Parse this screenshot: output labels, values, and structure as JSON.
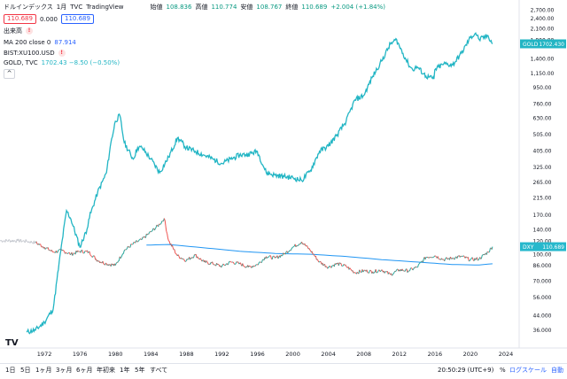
{
  "header": {
    "title": "ドルインデックス",
    "interval": "1月",
    "source": "TVC",
    "platform": "TradingView",
    "ohlc": {
      "open_label": "始値",
      "open": "108.836",
      "high_label": "高値",
      "high": "110.774",
      "low_label": "安値",
      "low": "108.767",
      "close_label": "終値",
      "close": "110.689",
      "change": "+2.004 (+1.84%)"
    },
    "bid": "110.689",
    "spread": "0.000",
    "ask": "110.689"
  },
  "indicators": {
    "volume_label": "出来高",
    "ma_label": "MA 200 close 0",
    "ma_value": "87.914",
    "compare1_label": "BIST:XU100.USD",
    "compare2_label": "GOLD, TVC",
    "compare2_value": "1702.43 −8.50 (−0.50%)",
    "warn_icon": "!",
    "collapse_icon": "^"
  },
  "colors": {
    "gold": "#22b5c4",
    "dxy_up": "#26a69a",
    "dxy_down": "#ef5350",
    "ma": "#2196f3",
    "gold_badge": "#22b5c4",
    "dxy_badge": "#26b8cc",
    "axis_text": "#131722"
  },
  "chart_data": {
    "type": "line",
    "title": "ドルインデックス, 1月, TVC",
    "xlabel": "",
    "ylabel": "",
    "y_scale": "log",
    "ylim": [
      30,
      3000
    ],
    "x_ticks": [
      "1972",
      "1976",
      "1980",
      "1984",
      "1988",
      "1992",
      "1996",
      "2000",
      "2004",
      "2008",
      "2012",
      "2016",
      "2020",
      "2024"
    ],
    "x_tick_years": [
      1972,
      1976,
      1980,
      1984,
      1988,
      1992,
      1996,
      2000,
      2004,
      2008,
      2012,
      2016,
      2020,
      2024
    ],
    "y_ticks": [
      "2,700.00",
      "2,400.00",
      "2,100.00",
      "1,800.00",
      "1,400.00",
      "1,150.00",
      "950.00",
      "760.00",
      "630.00",
      "505.00",
      "405.00",
      "325.00",
      "265.00",
      "215.00",
      "170.00",
      "140.00",
      "120.00",
      "100.00",
      "86.000",
      "70.000",
      "56.000",
      "44.000",
      "36.000"
    ],
    "y_tick_values": [
      2700,
      2400,
      2100,
      1800,
      1400,
      1150,
      950,
      760,
      630,
      505,
      405,
      325,
      265,
      215,
      170,
      140,
      120,
      100,
      86,
      70,
      56,
      44,
      36
    ],
    "series": [
      {
        "name": "GOLD",
        "style": "line",
        "x": [
          1970,
          1971,
          1972,
          1973,
          1974,
          1974.5,
          1975,
          1976,
          1976.8,
          1977,
          1978,
          1979,
          1979.5,
          1980,
          1980.5,
          1981,
          1982,
          1982.5,
          1983,
          1984,
          1985,
          1986,
          1987,
          1988,
          1989,
          1990,
          1991,
          1992,
          1993,
          1994,
          1995,
          1996,
          1997,
          1998,
          1999,
          2000,
          2001,
          2002,
          2003,
          2004,
          2005,
          2006,
          2007,
          2008,
          2009,
          2010,
          2011,
          2011.7,
          2012,
          2013,
          2013.5,
          2014,
          2015,
          2015.9,
          2016,
          2017,
          2018,
          2019,
          2020,
          2020.6,
          2021,
          2022,
          2022.5
        ],
        "values": [
          35,
          36,
          40,
          48,
          120,
          180,
          160,
          110,
          140,
          160,
          230,
          300,
          450,
          600,
          650,
          450,
          360,
          420,
          420,
          360,
          300,
          370,
          480,
          420,
          400,
          380,
          360,
          340,
          360,
          380,
          385,
          400,
          300,
          290,
          285,
          280,
          270,
          310,
          400,
          430,
          500,
          600,
          800,
          850,
          1100,
          1350,
          1700,
          1800,
          1650,
          1300,
          1200,
          1250,
          1100,
          1060,
          1200,
          1300,
          1280,
          1500,
          1850,
          1970,
          1800,
          1900,
          1702.43
        ]
      },
      {
        "name": "DXY",
        "style": "line",
        "x": [
          1967,
          1969,
          1970,
          1971,
          1972,
          1973,
          1974,
          1975,
          1976,
          1977,
          1978,
          1979,
          1980,
          1981,
          1982,
          1983,
          1984,
          1985,
          1985.5,
          1986,
          1987,
          1988,
          1989,
          1990,
          1991,
          1992,
          1993,
          1994,
          1995,
          1996,
          1997,
          1998,
          1999,
          2000,
          2001,
          2002,
          2003,
          2004,
          2005,
          2006,
          2007,
          2008,
          2009,
          2010,
          2011,
          2012,
          2013,
          2014,
          2015,
          2016,
          2017,
          2018,
          2019,
          2020,
          2021,
          2022,
          2022.5
        ],
        "values": [
          120,
          120,
          119,
          117,
          110,
          103,
          105,
          100,
          104,
          103,
          92,
          88,
          86,
          105,
          115,
          122,
          135,
          150,
          162,
          120,
          98,
          92,
          99,
          90,
          88,
          85,
          90,
          88,
          84,
          87,
          97,
          95,
          100,
          110,
          118,
          105,
          90,
          84,
          88,
          85,
          78,
          80,
          79,
          81,
          76,
          81,
          80,
          84,
          96,
          98,
          93,
          95,
          97,
          93,
          94,
          103,
          110.689
        ]
      },
      {
        "name": "MA 200",
        "style": "line",
        "x": [
          1983.5,
          1986,
          1990,
          1994,
          1998,
          2002,
          2006,
          2010,
          2014,
          2018,
          2021,
          2022.5
        ],
        "values": [
          113,
          114,
          109,
          104,
          101,
          100,
          97,
          93,
          90,
          87,
          86.5,
          87.914
        ]
      }
    ],
    "price_badges": [
      {
        "label": "GOLD",
        "value": "1702.430"
      },
      {
        "label": "DXY",
        "value": "110.689"
      }
    ],
    "xlim": [
      1967,
      2025.5
    ],
    "grid": false,
    "legend": "top-left"
  },
  "footer": {
    "ranges": [
      "1日",
      "5日",
      "1ヶ月",
      "3ヶ月",
      "6ヶ月",
      "年初来",
      "1年",
      "5年",
      "すべて"
    ],
    "time": "20:50:29 (UTC+9)",
    "percent": "%",
    "log_scale": "ログスケール",
    "auto": "自動",
    "logo": "TV"
  }
}
